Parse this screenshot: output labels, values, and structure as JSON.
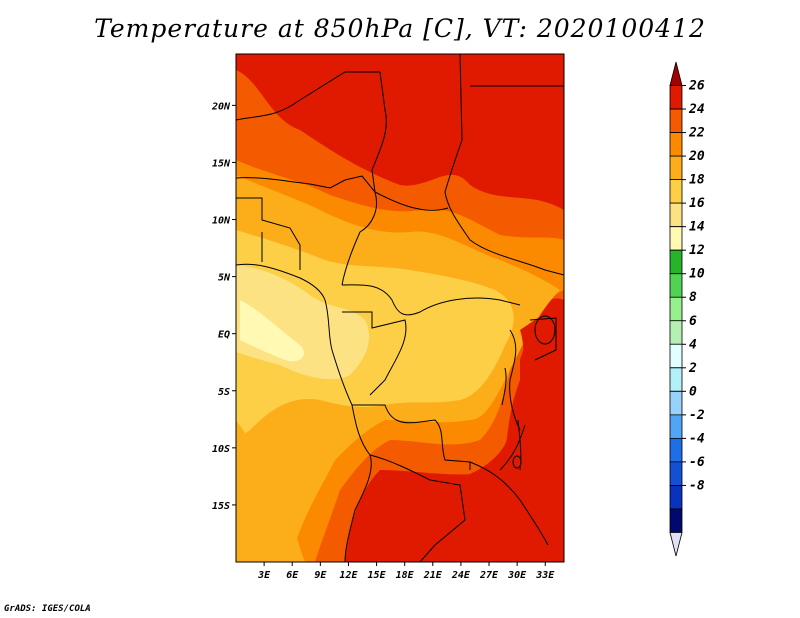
{
  "title": "Temperature at 850hPa [C], VT: 2020100412",
  "credit": "GrADS: IGES/COLA",
  "map": {
    "lon_range": [
      0,
      35
    ],
    "lat_range": [
      -20,
      24.5
    ],
    "lat_ticks": [
      {
        "label": "20N",
        "value": 20
      },
      {
        "label": "15N",
        "value": 15
      },
      {
        "label": "10N",
        "value": 10
      },
      {
        "label": "5N",
        "value": 5
      },
      {
        "label": "EQ",
        "value": 0
      },
      {
        "label": "5S",
        "value": -5
      },
      {
        "label": "10S",
        "value": -10
      },
      {
        "label": "15S",
        "value": -15
      }
    ],
    "lon_ticks": [
      {
        "label": "3E",
        "value": 3
      },
      {
        "label": "6E",
        "value": 6
      },
      {
        "label": "9E",
        "value": 9
      },
      {
        "label": "12E",
        "value": 12
      },
      {
        "label": "15E",
        "value": 15
      },
      {
        "label": "18E",
        "value": 18
      },
      {
        "label": "21E",
        "value": 21
      },
      {
        "label": "24E",
        "value": 24
      },
      {
        "label": "27E",
        "value": 27
      },
      {
        "label": "30E",
        "value": 30
      },
      {
        "label": "33E",
        "value": 33
      }
    ]
  },
  "colorbar": {
    "levels": [
      "26",
      "24",
      "22",
      "20",
      "18",
      "16",
      "14",
      "12",
      "10",
      "8",
      "6",
      "4",
      "2",
      "0",
      "-2",
      "-4",
      "-6",
      "-8"
    ],
    "colors": [
      "#a50000",
      "#e01a00",
      "#f45a00",
      "#fc8a00",
      "#fcae1a",
      "#fccf47",
      "#fce283",
      "#fff9b4",
      "#26b429",
      "#52d252",
      "#96f08c",
      "#b4f0b4",
      "#e1ffff",
      "#b4f0fa",
      "#96d2fa",
      "#50a5f5",
      "#1e6ee6",
      "#1450d2",
      "#0a32be",
      "#000a6e",
      "#e1e1f5"
    ]
  }
}
